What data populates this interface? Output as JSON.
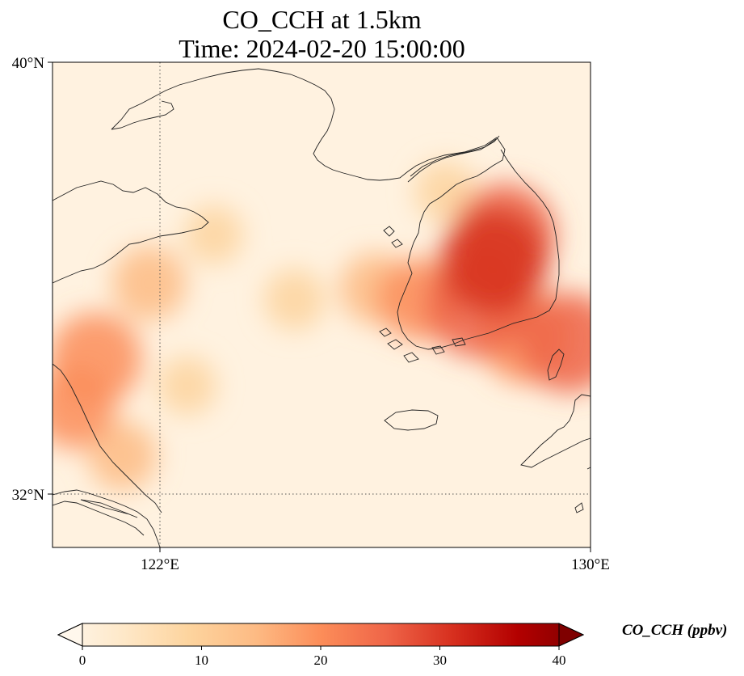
{
  "map": {
    "title_line1": "CO_CCH at 1.5km",
    "title_line2": "Time: 2024-02-20 15:00:00",
    "lat_labels": [
      "40°N",
      "32°N"
    ],
    "lon_labels": [
      "122°E",
      "130°E"
    ],
    "extent": {
      "lon_min": 120,
      "lon_max": 130,
      "lat_min": 31,
      "lat_max": 40
    },
    "gridlines": {
      "lon": 122,
      "lat": 32,
      "style": "dotted"
    }
  },
  "colorbar": {
    "label": "CO_CCH (ppbv)",
    "ticks": [
      "0",
      "10",
      "20",
      "30",
      "40"
    ],
    "min": 0,
    "max": 40,
    "colormap": "OrRd",
    "extend": "both",
    "colors": [
      "#fff7ec",
      "#fee8c8",
      "#fdd49e",
      "#fdbb84",
      "#fc8d59",
      "#ef6548",
      "#d7301f",
      "#b30000",
      "#7f0000"
    ]
  },
  "field_blobs": [
    {
      "lon": 128.2,
      "lat": 36.3,
      "ppbv": 28
    },
    {
      "lon": 128.4,
      "lat": 36.8,
      "ppbv": 26
    },
    {
      "lon": 127.9,
      "lat": 35.5,
      "ppbv": 27
    },
    {
      "lon": 129.6,
      "lat": 34.8,
      "ppbv": 25
    },
    {
      "lon": 128.8,
      "lat": 34.9,
      "ppbv": 22
    },
    {
      "lon": 126.8,
      "lat": 35.6,
      "ppbv": 18
    },
    {
      "lon": 126.0,
      "lat": 35.8,
      "ppbv": 14
    },
    {
      "lon": 120.8,
      "lat": 34.5,
      "ppbv": 22
    },
    {
      "lon": 120.4,
      "lat": 33.6,
      "ppbv": 18
    },
    {
      "lon": 121.3,
      "lat": 32.7,
      "ppbv": 13
    },
    {
      "lon": 121.8,
      "lat": 35.9,
      "ppbv": 15
    },
    {
      "lon": 123.0,
      "lat": 36.8,
      "ppbv": 9
    },
    {
      "lon": 124.5,
      "lat": 35.6,
      "ppbv": 10
    },
    {
      "lon": 122.5,
      "lat": 34.0,
      "ppbv": 9
    },
    {
      "lon": 127.3,
      "lat": 37.6,
      "ppbv": 10
    }
  ]
}
